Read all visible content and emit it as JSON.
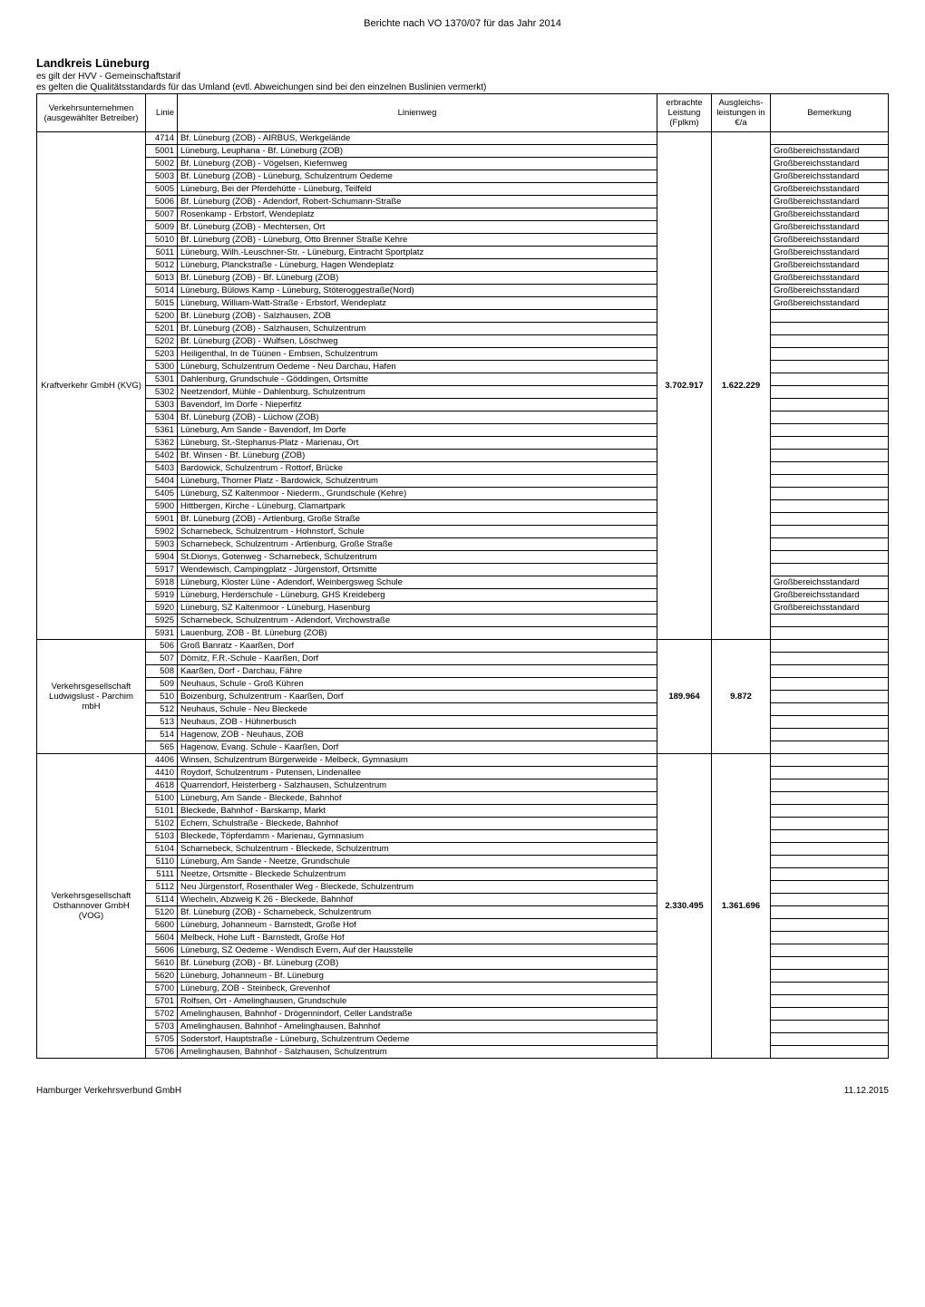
{
  "page_header": "Berichte nach VO 1370/07 für das Jahr 2014",
  "title": "Landkreis Lüneburg",
  "subtitle1": "es gilt der HVV - Gemeinschaftstarif",
  "subtitle2": "es gelten die Qualitätsstandards für das Umland (evtl. Abweichungen sind bei den einzelnen Buslinien vermerkt)",
  "columns": {
    "company": "Verkehrsunternehmen (ausgewählter Betreiber)",
    "line": "Linie",
    "route": "Linienweg",
    "perf": "erbrachte Leistung (Fplkm)",
    "comp": "Ausgleichs-leistungen in €/a",
    "remark": "Bemerkung"
  },
  "groups": [
    {
      "company": "Kraftverkehr GmbH (KVG)",
      "perf": "3.702.917",
      "comp": "1.622.229",
      "rows": [
        {
          "line": "4714",
          "route": "Bf. Lüneburg (ZOB) - AIRBUS, Werkgelände",
          "remark": ""
        },
        {
          "line": "5001",
          "route": "Lüneburg, Leuphana - Bf. Lüneburg (ZOB)",
          "remark": "Großbereichsstandard"
        },
        {
          "line": "5002",
          "route": "Bf. Lüneburg (ZOB) - Vögelsen, Kiefernweg",
          "remark": "Großbereichsstandard"
        },
        {
          "line": "5003",
          "route": "Bf. Lüneburg (ZOB) - Lüneburg, Schulzentrum Oedeme",
          "remark": "Großbereichsstandard"
        },
        {
          "line": "5005",
          "route": "Lüneburg, Bei der Pferdehütte - Lüneburg, Teilfeld",
          "remark": "Großbereichsstandard"
        },
        {
          "line": "5006",
          "route": "Bf. Lüneburg (ZOB) - Adendorf, Robert-Schumann-Straße",
          "remark": "Großbereichsstandard"
        },
        {
          "line": "5007",
          "route": "Rosenkamp - Erbstorf, Wendeplatz",
          "remark": "Großbereichsstandard"
        },
        {
          "line": "5009",
          "route": "Bf. Lüneburg (ZOB) - Mechtersen, Ort",
          "remark": "Großbereichsstandard"
        },
        {
          "line": "5010",
          "route": "Bf. Lüneburg (ZOB) - Lüneburg, Otto Brenner Straße Kehre",
          "remark": "Großbereichsstandard"
        },
        {
          "line": "5011",
          "route": "Lüneburg, Wilh.-Leuschner-Str. - Lüneburg, Eintracht Sportplatz",
          "remark": "Großbereichsstandard"
        },
        {
          "line": "5012",
          "route": "Lüneburg, Planckstraße - Lüneburg, Hagen Wendeplatz",
          "remark": "Großbereichsstandard"
        },
        {
          "line": "5013",
          "route": "Bf. Lüneburg (ZOB) - Bf. Lüneburg (ZOB)",
          "remark": "Großbereichsstandard"
        },
        {
          "line": "5014",
          "route": "Lüneburg, Bülows Kamp - Lüneburg, Stöteroggestraße(Nord)",
          "remark": "Großbereichsstandard"
        },
        {
          "line": "5015",
          "route": "Lüneburg, William-Watt-Straße - Erbstorf, Wendeplatz",
          "remark": "Großbereichsstandard"
        },
        {
          "line": "5200",
          "route": "Bf. Lüneburg (ZOB) - Salzhausen, ZOB",
          "remark": ""
        },
        {
          "line": "5201",
          "route": "Bf. Lüneburg (ZOB) - Salzhausen, Schulzentrum",
          "remark": ""
        },
        {
          "line": "5202",
          "route": "Bf. Lüneburg (ZOB) - Wulfsen, Löschweg",
          "remark": ""
        },
        {
          "line": "5203",
          "route": "Heiligenthal, In de Tüünen - Embsen, Schulzentrum",
          "remark": ""
        },
        {
          "line": "5300",
          "route": "Lüneburg, Schulzentrum Oedeme - Neu Darchau, Hafen",
          "remark": ""
        },
        {
          "line": "5301",
          "route": "Dahlenburg, Grundschule - Göddingen, Ortsmitte",
          "remark": ""
        },
        {
          "line": "5302",
          "route": "Neetzendorf, Mühle - Dahlenburg, Schulzentrum",
          "remark": ""
        },
        {
          "line": "5303",
          "route": "Bavendorf, Im Dorfe - Nieperfitz",
          "remark": ""
        },
        {
          "line": "5304",
          "route": "Bf. Lüneburg (ZOB) - Lüchow (ZOB)",
          "remark": ""
        },
        {
          "line": "5361",
          "route": "Lüneburg, Am Sande - Bavendorf, Im Dorfe",
          "remark": ""
        },
        {
          "line": "5362",
          "route": "Lüneburg, St.-Stephanus-Platz - Marienau, Ort",
          "remark": ""
        },
        {
          "line": "5402",
          "route": "Bf. Winsen - Bf. Lüneburg (ZOB)",
          "remark": ""
        },
        {
          "line": "5403",
          "route": "Bardowick, Schulzentrum - Rottorf, Brücke",
          "remark": ""
        },
        {
          "line": "5404",
          "route": "Lüneburg, Thorner Platz - Bardowick, Schulzentrum",
          "remark": ""
        },
        {
          "line": "5405",
          "route": "Lüneburg, SZ Kaltenmoor - Niederm., Grundschule (Kehre)",
          "remark": ""
        },
        {
          "line": "5900",
          "route": "Hittbergen, Kirche - Lüneburg, Clamartpark",
          "remark": ""
        },
        {
          "line": "5901",
          "route": "Bf. Lüneburg (ZOB) - Artlenburg, Große Straße",
          "remark": ""
        },
        {
          "line": "5902",
          "route": "Scharnebeck, Schulzentrum - Hohnstorf, Schule",
          "remark": ""
        },
        {
          "line": "5903",
          "route": "Scharnebeck, Schulzentrum - Artlenburg, Große Straße",
          "remark": ""
        },
        {
          "line": "5904",
          "route": "St.Dionys, Gotenweg - Scharnebeck, Schulzentrum",
          "remark": ""
        },
        {
          "line": "5917",
          "route": "Wendewisch, Campingplatz - Jürgenstorf, Ortsmitte",
          "remark": ""
        },
        {
          "line": "5918",
          "route": "Lüneburg, Kloster Lüne - Adendorf, Weinbergsweg Schule",
          "remark": "Großbereichsstandard"
        },
        {
          "line": "5919",
          "route": "Lüneburg, Herderschule - Lüneburg, GHS Kreideberg",
          "remark": "Großbereichsstandard"
        },
        {
          "line": "5920",
          "route": "Lüneburg, SZ Kaltenmoor - Lüneburg, Hasenburg",
          "remark": "Großbereichsstandard"
        },
        {
          "line": "5925",
          "route": "Scharnebeck, Schulzentrum - Adendorf, Virchowstraße",
          "remark": ""
        },
        {
          "line": "5931",
          "route": "Lauenburg, ZOB - Bf. Lüneburg (ZOB)",
          "remark": ""
        }
      ]
    },
    {
      "company": "Verkehrsgesellschaft Ludwigslust - Parchim mbH",
      "perf": "189.964",
      "comp": "9.872",
      "rows": [
        {
          "line": "506",
          "route": "Groß Banratz - Kaarßen, Dorf",
          "remark": ""
        },
        {
          "line": "507",
          "route": "Dömitz, F.R.-Schule - Kaarßen, Dorf",
          "remark": ""
        },
        {
          "line": "508",
          "route": "Kaarßen, Dorf - Darchau, Fähre",
          "remark": ""
        },
        {
          "line": "509",
          "route": "Neuhaus, Schule - Groß Kühren",
          "remark": ""
        },
        {
          "line": "510",
          "route": "Boizenburg, Schulzentrum - Kaarßen, Dorf",
          "remark": ""
        },
        {
          "line": "512",
          "route": "Neuhaus, Schule - Neu Bleckede",
          "remark": ""
        },
        {
          "line": "513",
          "route": "Neuhaus, ZOB - Hühnerbusch",
          "remark": ""
        },
        {
          "line": "514",
          "route": "Hagenow, ZOB - Neuhaus, ZOB",
          "remark": ""
        },
        {
          "line": "565",
          "route": "Hagenow, Evang. Schule - Kaarßen, Dorf",
          "remark": ""
        }
      ]
    },
    {
      "company": "Verkehrsgesellschaft Osthannover GmbH (VOG)",
      "perf": "2.330.495",
      "comp": "1.361.696",
      "rows": [
        {
          "line": "4406",
          "route": "Winsen, Schulzentrum Bürgerweide - Melbeck, Gymnasium",
          "remark": ""
        },
        {
          "line": "4410",
          "route": "Roydorf, Schulzentrum - Putensen, Lindenallee",
          "remark": ""
        },
        {
          "line": "4618",
          "route": "Quarrendorf, Heisterberg - Salzhausen, Schulzentrum",
          "remark": ""
        },
        {
          "line": "5100",
          "route": "Lüneburg, Am Sande - Bleckede, Bahnhof",
          "remark": ""
        },
        {
          "line": "5101",
          "route": "Bleckede, Bahnhof - Barskamp, Markt",
          "remark": ""
        },
        {
          "line": "5102",
          "route": "Echem, Schulstraße - Bleckede, Bahnhof",
          "remark": ""
        },
        {
          "line": "5103",
          "route": "Bleckede, Töpferdamm - Marienau, Gymnasium",
          "remark": ""
        },
        {
          "line": "5104",
          "route": "Scharnebeck, Schulzentrum - Bleckede, Schulzentrum",
          "remark": ""
        },
        {
          "line": "5110",
          "route": "Lüneburg, Am Sande - Neetze, Grundschule",
          "remark": ""
        },
        {
          "line": "5111",
          "route": "Neetze, Ortsmitte - Bleckede Schulzentrum",
          "remark": ""
        },
        {
          "line": "5112",
          "route": "Neu Jürgenstorf, Rosenthaler Weg - Bleckede, Schulzentrum",
          "remark": ""
        },
        {
          "line": "5114",
          "route": "Wiecheln, Abzweig K 26 - Bleckede, Bahnhof",
          "remark": ""
        },
        {
          "line": "5120",
          "route": "Bf. Lüneburg (ZOB) - Scharnebeck, Schulzentrum",
          "remark": ""
        },
        {
          "line": "5600",
          "route": "Lüneburg, Johanneum - Barnstedt, Große Hof",
          "remark": ""
        },
        {
          "line": "5604",
          "route": "Melbeck, Hohe Luft - Barnstedt, Große Hof",
          "remark": ""
        },
        {
          "line": "5606",
          "route": "Lüneburg, SZ Oedeme - Wendisch Evern, Auf der Hausstelle",
          "remark": ""
        },
        {
          "line": "5610",
          "route": "Bf. Lüneburg (ZOB) - Bf. Lüneburg (ZOB)",
          "remark": ""
        },
        {
          "line": "5620",
          "route": "Lüneburg, Johanneum - Bf. Lüneburg",
          "remark": ""
        },
        {
          "line": "5700",
          "route": "Lüneburg, ZOB - Steinbeck, Grevenhof",
          "remark": ""
        },
        {
          "line": "5701",
          "route": "Rolfsen, Ort - Amelinghausen, Grundschule",
          "remark": ""
        },
        {
          "line": "5702",
          "route": "Amelinghausen, Bahnhof - Drögennindorf, Celler Landstraße",
          "remark": ""
        },
        {
          "line": "5703",
          "route": "Amelinghausen, Bahnhof - Amelinghausen, Bahnhof",
          "remark": ""
        },
        {
          "line": "5705",
          "route": "Soderstorf, Hauptstraße - Lüneburg, Schulzentrum Oedeme",
          "remark": ""
        },
        {
          "line": "5706",
          "route": "Amelinghausen, Bahnhof - Salzhausen, Schulzentrum",
          "remark": ""
        }
      ]
    }
  ],
  "footer_left": "Hamburger Verkehrsverbund GmbH",
  "footer_right": "11.12.2015"
}
